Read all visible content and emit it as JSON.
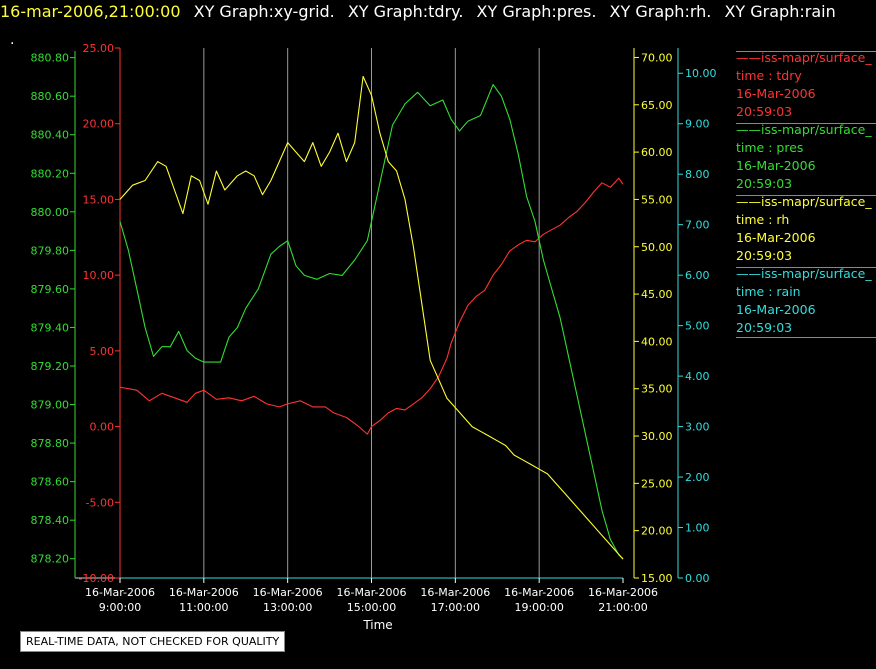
{
  "header": {
    "timestamp": "16-mar-2006,21:00:00",
    "graphs": [
      "XY Graph:xy-grid.",
      "XY Graph:tdry.",
      "XY Graph:pres.",
      "XY Graph:rh.",
      "XY Graph:rain"
    ]
  },
  "dot": ".",
  "disclaimer": "REAL-TIME DATA, NOT CHECKED FOR QUALITY",
  "legend": [
    {
      "name": "iss-mapr/surface_",
      "line2": "time : tdry",
      "line3": "16-Mar-2006",
      "line4": "20:59:03",
      "color": "#ff3333"
    },
    {
      "name": "iss-mapr/surface_",
      "line2": "time : pres",
      "line3": "16-Mar-2006",
      "line4": "20:59:03",
      "color": "#33dd33"
    },
    {
      "name": "iss-mapr/surface_",
      "line2": "time : rh",
      "line3": "16-Mar-2006",
      "line4": "20:59:03",
      "color": "#ffff33"
    },
    {
      "name": "iss-mapr/surface_",
      "line2": "time : rain",
      "line3": "16-Mar-2006",
      "line4": "20:59:03",
      "color": "#33dddd"
    }
  ],
  "chart_data": {
    "type": "line",
    "xlabel": "Time",
    "x_ticks": [
      {
        "date": "16-Mar-2006",
        "time": "9:00:00",
        "h": 9
      },
      {
        "date": "16-Mar-2006",
        "time": "11:00:00",
        "h": 11
      },
      {
        "date": "16-Mar-2006",
        "time": "13:00:00",
        "h": 13
      },
      {
        "date": "16-Mar-2006",
        "time": "15:00:00",
        "h": 15
      },
      {
        "date": "16-Mar-2006",
        "time": "17:00:00",
        "h": 17
      },
      {
        "date": "16-Mar-2006",
        "time": "19:00:00",
        "h": 19
      },
      {
        "date": "16-Mar-2006",
        "time": "21:00:00",
        "h": 21
      }
    ],
    "xlim": [
      9,
      21
    ],
    "grid_x": true,
    "axes": {
      "pres": {
        "color": "#33dd33",
        "range": [
          878.1,
          880.85
        ],
        "ticks": [
          "878.20",
          "878.40",
          "878.60",
          "878.80",
          "879.00",
          "879.20",
          "879.40",
          "879.60",
          "879.80",
          "880.00",
          "880.20",
          "880.40",
          "880.60",
          "880.80"
        ]
      },
      "tdry": {
        "color": "#ff3333",
        "range": [
          -10,
          25
        ],
        "ticks": [
          "-10.00",
          "-5.00",
          "0.00",
          "5.00",
          "10.00",
          "15.00",
          "20.00",
          "25.00"
        ]
      },
      "rh": {
        "color": "#ffff33",
        "range": [
          15,
          71
        ],
        "ticks": [
          "15.00",
          "20.00",
          "25.00",
          "30.00",
          "35.00",
          "40.00",
          "45.00",
          "50.00",
          "55.00",
          "60.00",
          "65.00",
          "70.00"
        ]
      },
      "rain": {
        "color": "#33dddd",
        "range": [
          0,
          10.5
        ],
        "ticks": [
          "0.00",
          "1.00",
          "2.00",
          "3.00",
          "4.00",
          "5.00",
          "6.00",
          "7.00",
          "8.00",
          "9.00",
          "10.00"
        ]
      }
    },
    "series": [
      {
        "name": "tdry",
        "color": "#ff3333",
        "points": [
          [
            9.0,
            2.6
          ],
          [
            9.4,
            2.4
          ],
          [
            9.7,
            1.7
          ],
          [
            10.0,
            2.2
          ],
          [
            10.4,
            1.8
          ],
          [
            10.6,
            1.6
          ],
          [
            10.8,
            2.2
          ],
          [
            11.0,
            2.4
          ],
          [
            11.3,
            1.8
          ],
          [
            11.6,
            1.9
          ],
          [
            11.9,
            1.7
          ],
          [
            12.2,
            2.0
          ],
          [
            12.5,
            1.5
          ],
          [
            12.8,
            1.3
          ],
          [
            13.0,
            1.5
          ],
          [
            13.3,
            1.7
          ],
          [
            13.6,
            1.3
          ],
          [
            13.9,
            1.3
          ],
          [
            14.1,
            0.9
          ],
          [
            14.4,
            0.6
          ],
          [
            14.7,
            0.0
          ],
          [
            14.9,
            -0.5
          ],
          [
            15.0,
            0.0
          ],
          [
            15.2,
            0.4
          ],
          [
            15.4,
            0.9
          ],
          [
            15.6,
            1.2
          ],
          [
            15.8,
            1.1
          ],
          [
            16.0,
            1.5
          ],
          [
            16.2,
            1.9
          ],
          [
            16.4,
            2.5
          ],
          [
            16.6,
            3.3
          ],
          [
            16.8,
            4.5
          ],
          [
            16.9,
            5.5
          ],
          [
            17.1,
            6.9
          ],
          [
            17.3,
            8.0
          ],
          [
            17.5,
            8.6
          ],
          [
            17.7,
            9.0
          ],
          [
            17.9,
            10.0
          ],
          [
            18.1,
            10.7
          ],
          [
            18.3,
            11.6
          ],
          [
            18.5,
            12.0
          ],
          [
            18.7,
            12.3
          ],
          [
            18.9,
            12.2
          ],
          [
            19.1,
            12.7
          ],
          [
            19.3,
            13.0
          ],
          [
            19.5,
            13.3
          ],
          [
            19.7,
            13.8
          ],
          [
            19.9,
            14.2
          ],
          [
            20.1,
            14.8
          ],
          [
            20.3,
            15.5
          ],
          [
            20.5,
            16.1
          ],
          [
            20.7,
            15.8
          ],
          [
            20.9,
            16.4
          ],
          [
            21.0,
            16.0
          ]
        ]
      },
      {
        "name": "pres",
        "color": "#33dd33",
        "points": [
          [
            9.0,
            879.95
          ],
          [
            9.2,
            879.8
          ],
          [
            9.4,
            879.6
          ],
          [
            9.6,
            879.4
          ],
          [
            9.8,
            879.25
          ],
          [
            10.0,
            879.3
          ],
          [
            10.2,
            879.3
          ],
          [
            10.4,
            879.38
          ],
          [
            10.6,
            879.28
          ],
          [
            10.8,
            879.24
          ],
          [
            11.0,
            879.22
          ],
          [
            11.2,
            879.22
          ],
          [
            11.4,
            879.22
          ],
          [
            11.6,
            879.35
          ],
          [
            11.8,
            879.4
          ],
          [
            12.0,
            879.5
          ],
          [
            12.3,
            879.6
          ],
          [
            12.6,
            879.78
          ],
          [
            12.8,
            879.82
          ],
          [
            13.0,
            879.85
          ],
          [
            13.2,
            879.72
          ],
          [
            13.4,
            879.67
          ],
          [
            13.7,
            879.65
          ],
          [
            14.0,
            879.68
          ],
          [
            14.3,
            879.67
          ],
          [
            14.6,
            879.75
          ],
          [
            14.9,
            879.85
          ],
          [
            15.1,
            880.05
          ],
          [
            15.3,
            880.25
          ],
          [
            15.5,
            880.45
          ],
          [
            15.8,
            880.56
          ],
          [
            16.1,
            880.62
          ],
          [
            16.4,
            880.55
          ],
          [
            16.7,
            880.58
          ],
          [
            16.9,
            880.48
          ],
          [
            17.1,
            880.42
          ],
          [
            17.3,
            880.47
          ],
          [
            17.6,
            880.5
          ],
          [
            17.9,
            880.66
          ],
          [
            18.1,
            880.6
          ],
          [
            18.3,
            880.48
          ],
          [
            18.5,
            880.3
          ],
          [
            18.7,
            880.08
          ],
          [
            18.9,
            879.95
          ],
          [
            19.1,
            879.75
          ],
          [
            19.3,
            879.6
          ],
          [
            19.5,
            879.45
          ],
          [
            19.7,
            879.25
          ],
          [
            19.9,
            879.05
          ],
          [
            20.1,
            878.85
          ],
          [
            20.3,
            878.65
          ],
          [
            20.5,
            878.45
          ],
          [
            20.7,
            878.3
          ],
          [
            20.9,
            878.22
          ],
          [
            21.0,
            878.2
          ]
        ]
      },
      {
        "name": "rh",
        "color": "#ffff33",
        "points": [
          [
            9.0,
            55
          ],
          [
            9.3,
            56.5
          ],
          [
            9.6,
            57
          ],
          [
            9.9,
            59
          ],
          [
            10.1,
            58.5
          ],
          [
            10.3,
            56
          ],
          [
            10.5,
            53.5
          ],
          [
            10.7,
            57.5
          ],
          [
            10.9,
            57
          ],
          [
            11.1,
            54.5
          ],
          [
            11.3,
            58
          ],
          [
            11.5,
            56
          ],
          [
            11.8,
            57.5
          ],
          [
            12.0,
            58
          ],
          [
            12.2,
            57.5
          ],
          [
            12.4,
            55.5
          ],
          [
            12.6,
            57
          ],
          [
            12.8,
            59
          ],
          [
            13.0,
            61
          ],
          [
            13.2,
            60
          ],
          [
            13.4,
            59
          ],
          [
            13.6,
            61
          ],
          [
            13.8,
            58.5
          ],
          [
            14.0,
            60
          ],
          [
            14.2,
            62
          ],
          [
            14.4,
            59
          ],
          [
            14.6,
            61
          ],
          [
            14.8,
            68
          ],
          [
            15.0,
            66
          ],
          [
            15.2,
            62
          ],
          [
            15.4,
            59
          ],
          [
            15.6,
            58
          ],
          [
            15.8,
            55
          ],
          [
            16.0,
            50
          ],
          [
            16.2,
            44
          ],
          [
            16.4,
            38
          ],
          [
            16.6,
            36
          ],
          [
            16.8,
            34
          ],
          [
            17.0,
            33
          ],
          [
            17.2,
            32
          ],
          [
            17.4,
            31
          ],
          [
            17.6,
            30.5
          ],
          [
            17.8,
            30
          ],
          [
            18.0,
            29.5
          ],
          [
            18.2,
            29
          ],
          [
            18.4,
            28
          ],
          [
            18.6,
            27.5
          ],
          [
            18.8,
            27
          ],
          [
            19.0,
            26.5
          ],
          [
            19.2,
            26
          ],
          [
            19.4,
            25
          ],
          [
            19.6,
            24
          ],
          [
            19.8,
            23
          ],
          [
            20.0,
            22
          ],
          [
            20.2,
            21
          ],
          [
            20.4,
            20
          ],
          [
            20.6,
            19
          ],
          [
            20.8,
            18
          ],
          [
            21.0,
            17
          ]
        ]
      },
      {
        "name": "rain",
        "color": "#33dddd",
        "points": [
          [
            9.0,
            0
          ],
          [
            21.0,
            0
          ]
        ]
      }
    ]
  }
}
